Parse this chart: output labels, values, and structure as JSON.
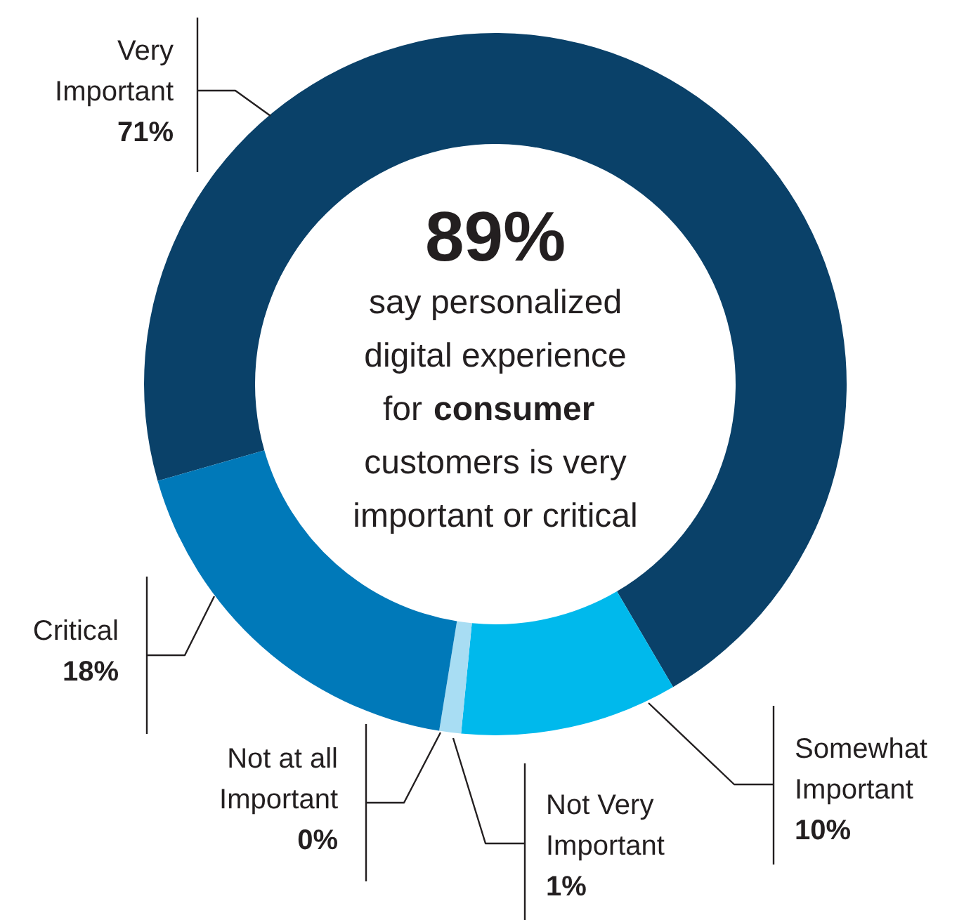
{
  "chart_data": {
    "type": "donut",
    "categories": [
      "Very Important",
      "Somewhat Important",
      "Not Very Important",
      "Not at all Important",
      "Critical"
    ],
    "values": [
      71,
      10,
      1,
      0,
      18
    ],
    "colors": [
      "#0a4169",
      "#00b9ec",
      "#a8ddf3",
      "#d6eff9",
      "#0079b9"
    ],
    "value_labels": [
      "71%",
      "10%",
      "1%",
      "0%",
      "18%"
    ],
    "annotations": [
      "89%",
      "say personalized",
      "digital experience",
      "for consumer",
      "customers is very",
      "important or critical"
    ]
  }
}
